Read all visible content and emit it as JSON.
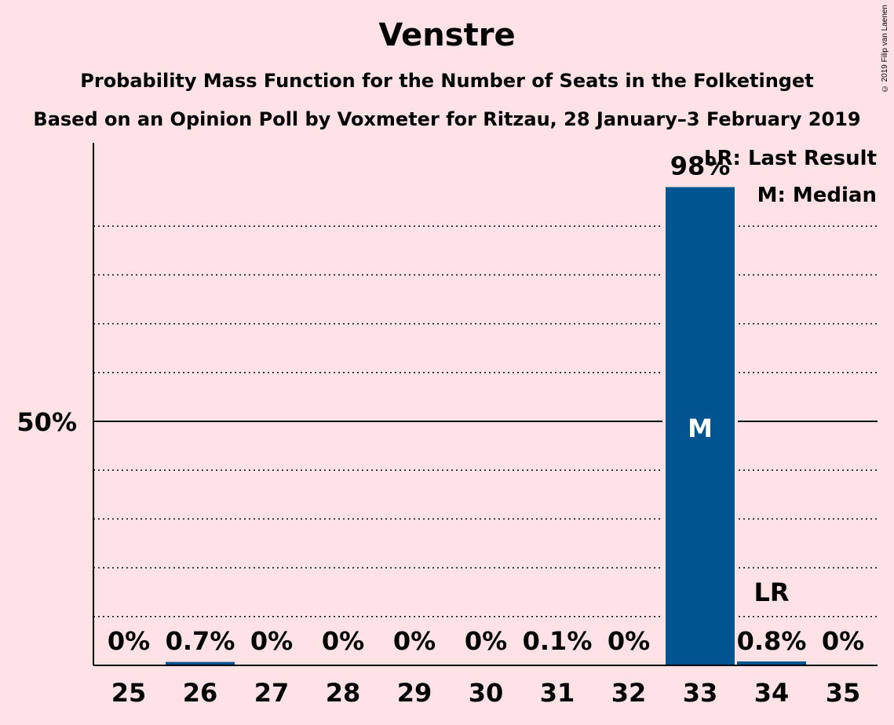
{
  "copyright": "© 2019 Filip van Laenen",
  "colors": {
    "background": "#ffe2e6",
    "bar": "#00548f"
  },
  "chart_data": {
    "type": "bar",
    "title": "Venstre",
    "subtitle": "Probability Mass Function for the Number of Seats in the Folketinget",
    "subtitle2": "Based on an Opinion Poll by Voxmeter for Ritzau, 28 January–3 February 2019",
    "categories": [
      "25",
      "26",
      "27",
      "28",
      "29",
      "30",
      "31",
      "32",
      "33",
      "34",
      "35"
    ],
    "values": [
      0,
      0.7,
      0,
      0,
      0,
      0,
      0.1,
      0,
      98,
      0.8,
      0
    ],
    "value_labels": [
      "0%",
      "0.7%",
      "0%",
      "0%",
      "0%",
      "0%",
      "0.1%",
      "0%",
      "98%",
      "0.8%",
      "0%"
    ],
    "ylim": [
      0,
      107
    ],
    "y_tick_label": "50%",
    "y_tick_value": 50,
    "grid_values": [
      10,
      20,
      30,
      40,
      60,
      70,
      80,
      90
    ],
    "median_seat": "33",
    "median_marker": "M",
    "last_result_seat": "34",
    "last_result_marker": "LR",
    "legend": [
      "LR: Last Result",
      "M: Median"
    ],
    "legend_position": "top-right"
  }
}
